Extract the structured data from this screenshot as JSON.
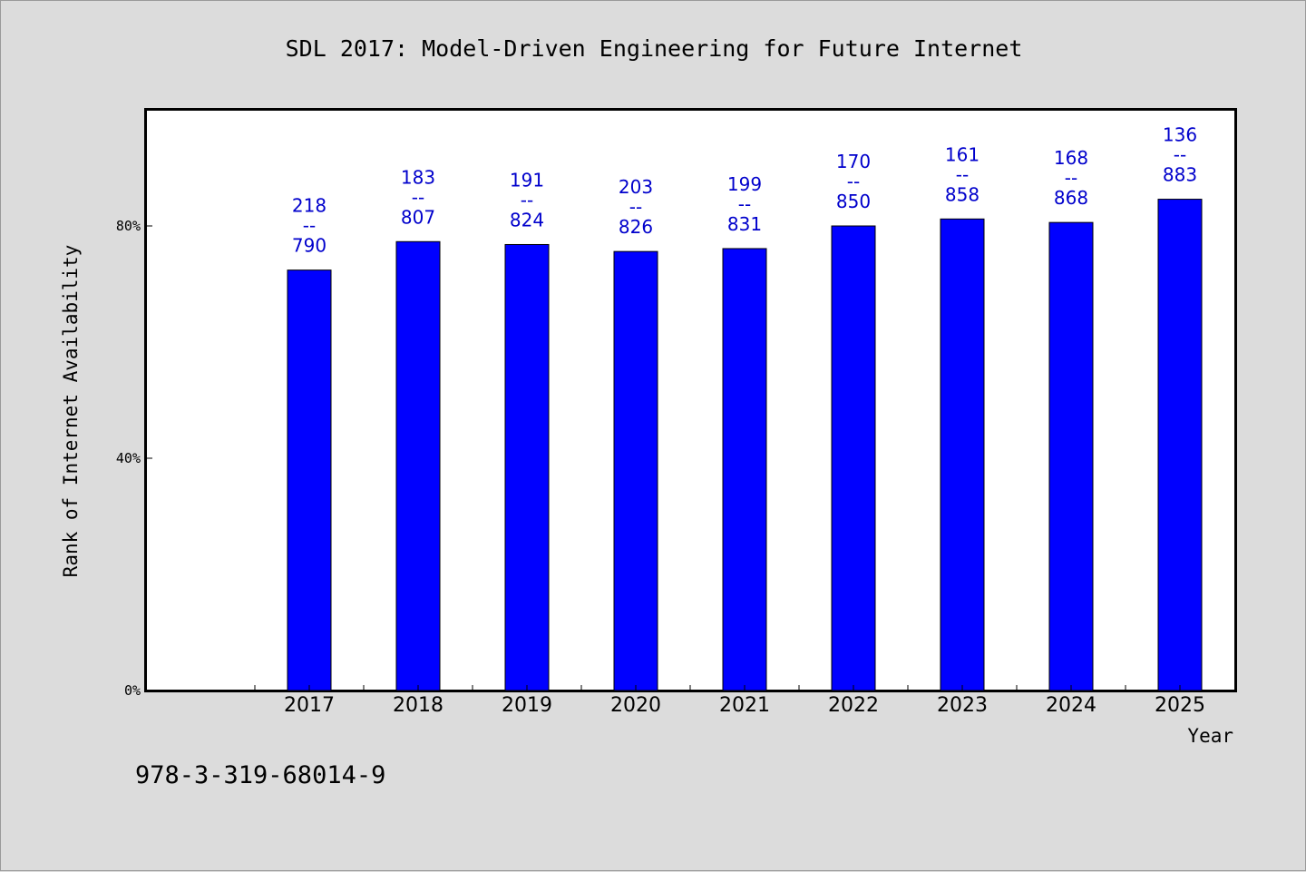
{
  "chart_data": {
    "type": "bar",
    "title": "SDL 2017: Model-Driven Engineering for Future Internet",
    "xlabel": "Year",
    "ylabel": "Rank of Internet Availability",
    "ylim": [
      0,
      1
    ],
    "yticks": [
      {
        "value": 0,
        "label": "0%"
      },
      {
        "value": 0.4,
        "label": "40%"
      },
      {
        "value": 0.8,
        "label": "80%"
      }
    ],
    "categories": [
      "2017",
      "2018",
      "2019",
      "2020",
      "2021",
      "2022",
      "2023",
      "2024",
      "2025"
    ],
    "values": [
      0.724,
      0.773,
      0.768,
      0.756,
      0.761,
      0.8,
      0.812,
      0.806,
      0.846
    ],
    "labels": [
      [
        "218",
        "--",
        "790"
      ],
      [
        "183",
        "--",
        "807"
      ],
      [
        "191",
        "--",
        "824"
      ],
      [
        "203",
        "--",
        "826"
      ],
      [
        "199",
        "--",
        "831"
      ],
      [
        "170",
        "--",
        "850"
      ],
      [
        "161",
        "--",
        "858"
      ],
      [
        "168",
        "--",
        "868"
      ],
      [
        "136",
        "--",
        "883"
      ]
    ],
    "bar_color": "#0000ff",
    "label_color": "#0000cc",
    "grid": false,
    "legend": "none"
  },
  "footer": {
    "isbn": "978-3-319-68014-9"
  }
}
